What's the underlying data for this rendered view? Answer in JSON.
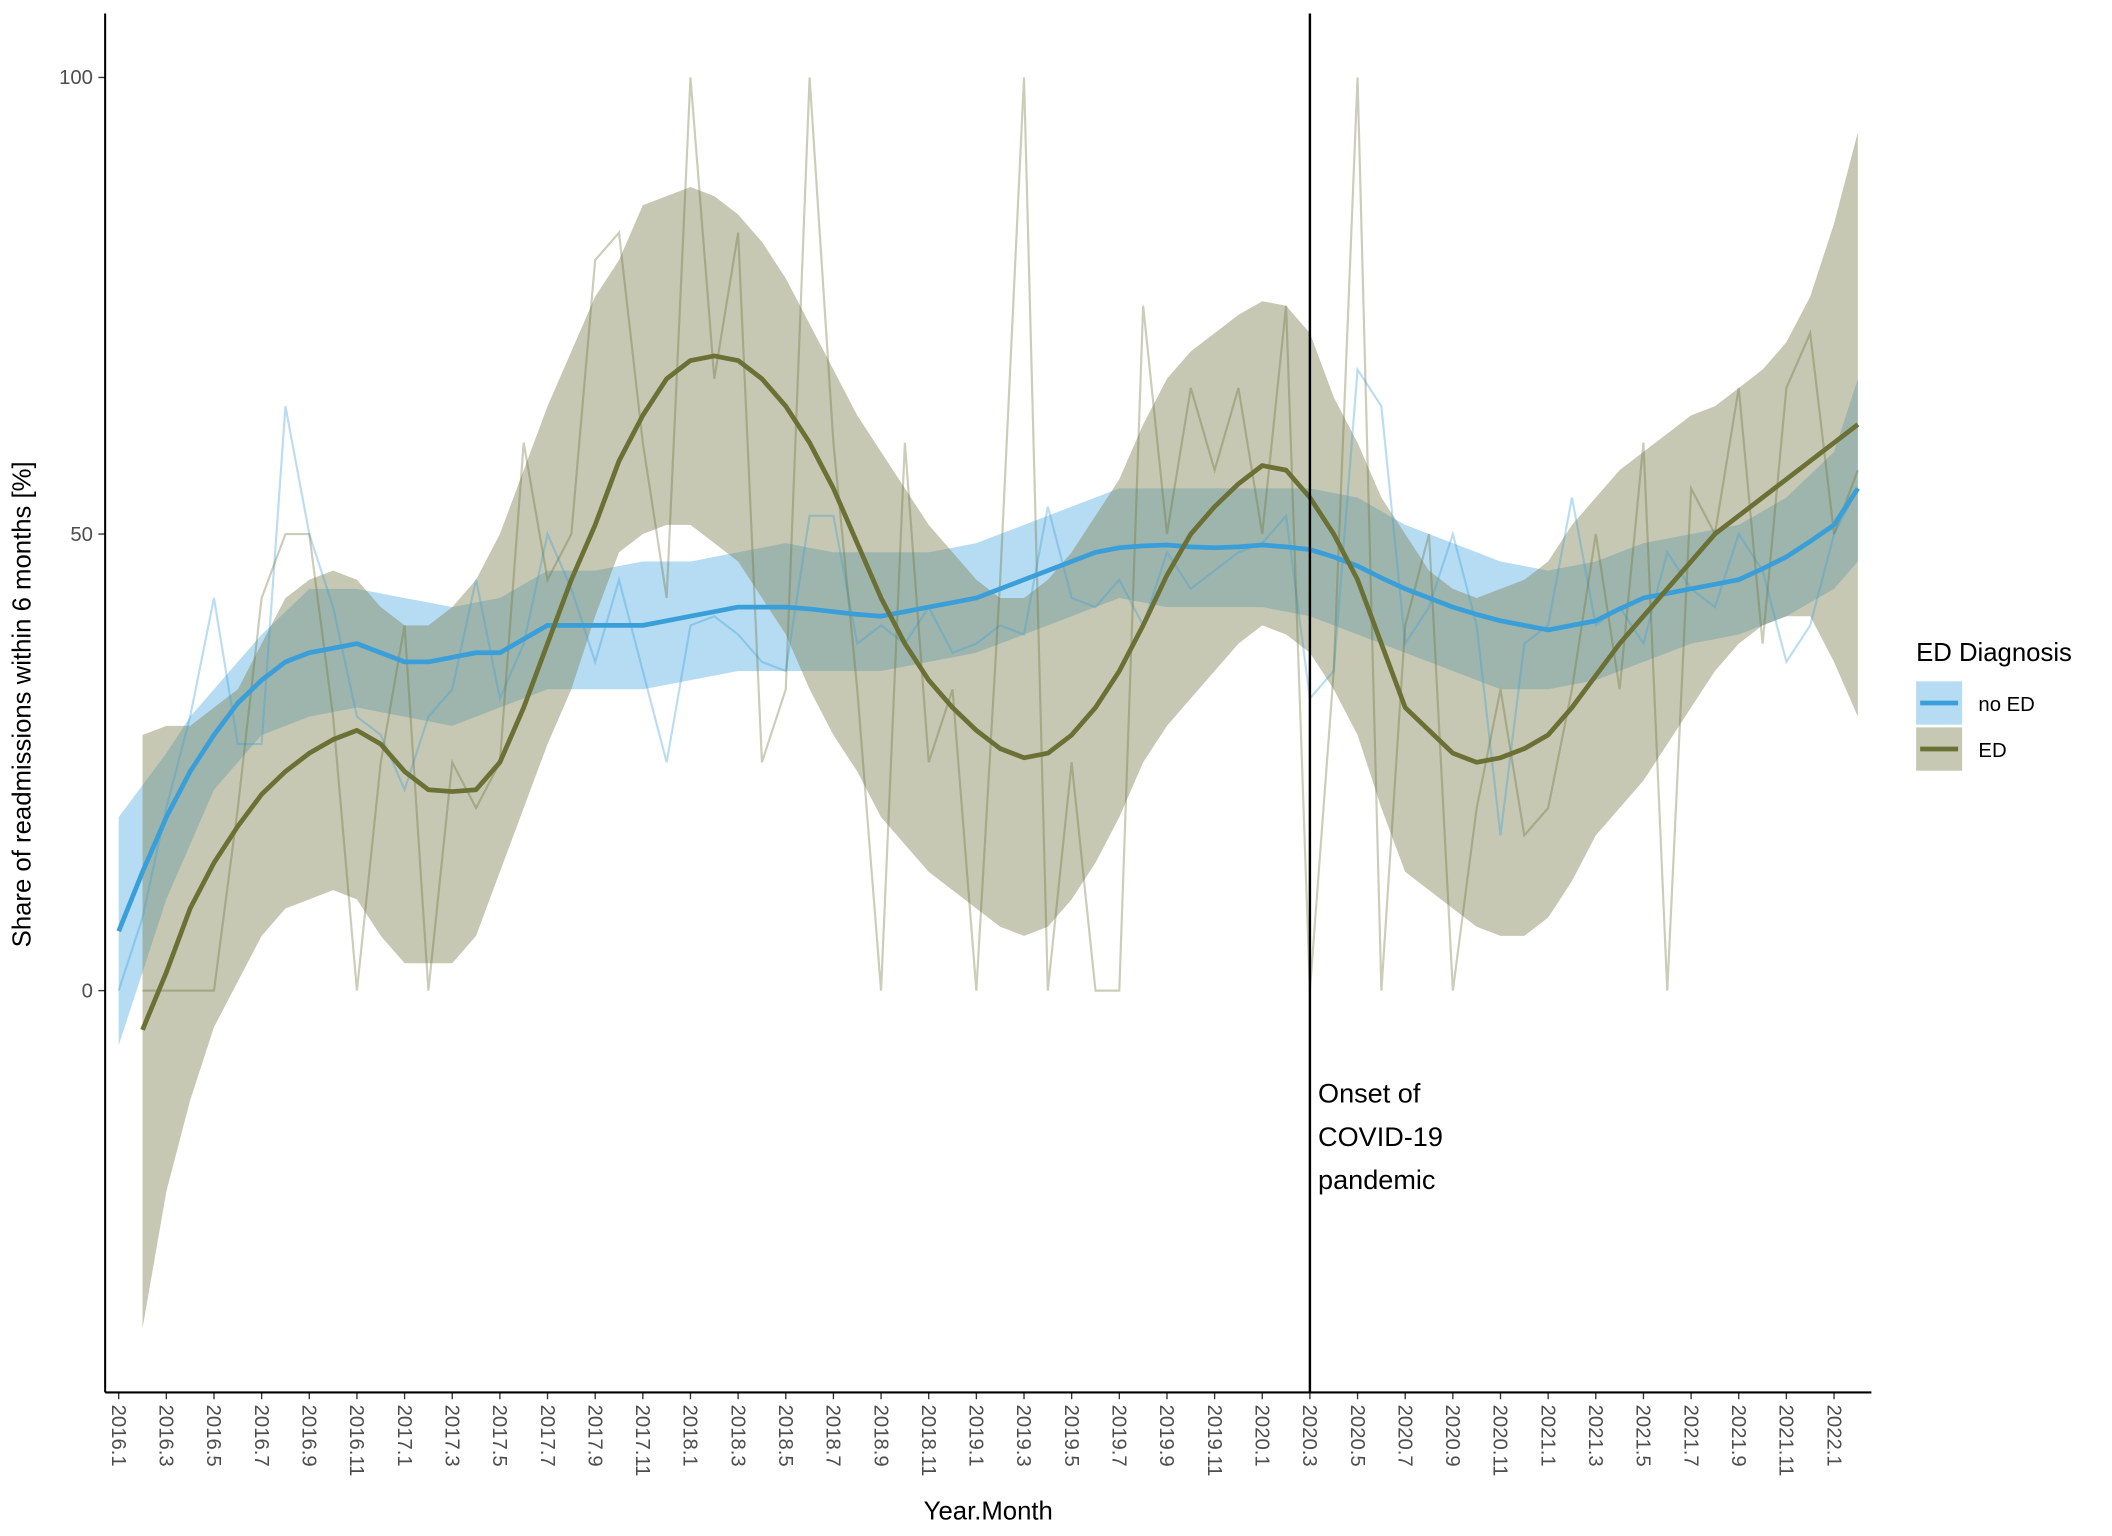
{
  "chart_data": {
    "type": "line",
    "x_label": "Year.Month",
    "y_label": "Share of readmissions within 6 months [%]",
    "categories": [
      "2016.1",
      null,
      "2016.3",
      null,
      "2016.5",
      null,
      "2016.7",
      null,
      "2016.9",
      null,
      "2016.11",
      null,
      "2017.1",
      null,
      "2017.3",
      null,
      "2017.5",
      null,
      "2017.7",
      null,
      "2017.9",
      null,
      "2017.11",
      null,
      "2018.1",
      null,
      "2018.3",
      null,
      "2018.5",
      null,
      "2018.7",
      null,
      "2018.9",
      null,
      "2018.11",
      null,
      "2019.1",
      null,
      "2019.3",
      null,
      "2019.5",
      null,
      "2019.7",
      null,
      "2019.9",
      null,
      "2019.11",
      null,
      "2020.1",
      null,
      "2020.3",
      null,
      "2020.5",
      null,
      "2020.7",
      null,
      "2020.9",
      null,
      "2020.11",
      null,
      "2021.1",
      null,
      "2021.3",
      null,
      "2021.5",
      null,
      "2021.7",
      null,
      "2021.9",
      null,
      "2021.11",
      null,
      "2022.1",
      null
    ],
    "ylim": [
      -44,
      107
    ],
    "yticks": [
      0,
      50,
      100
    ],
    "legend_title": "ED Diagnosis",
    "vline": "2020.3",
    "annotation": [
      "Onset of",
      "COVID-19",
      "pandemic"
    ],
    "series": [
      {
        "name": "no ED",
        "color": "#3a9fd8",
        "band_color": "rgba(110,185,232,0.5)",
        "values": [
          6.5,
          13,
          19,
          24,
          28,
          31.5,
          34,
          36,
          37,
          37.5,
          38,
          37,
          36,
          36,
          36.5,
          37,
          37,
          38.5,
          40,
          40,
          40,
          40,
          40,
          40.5,
          41,
          41.5,
          42,
          42,
          42,
          41.8,
          41.5,
          41.2,
          41,
          41.5,
          42,
          42.5,
          43,
          44,
          45,
          46,
          47,
          48,
          48.5,
          48.7,
          48.8,
          48.6,
          48.5,
          48.6,
          48.8,
          48.6,
          48.3,
          47.5,
          46.5,
          45.2,
          44,
          43,
          42,
          41.2,
          40.5,
          40,
          39.5,
          40,
          40.5,
          41.8,
          43,
          43.5,
          44,
          44.5,
          45,
          46.2,
          47.5,
          49.2,
          51,
          55
        ],
        "lower": [
          -6,
          2,
          10,
          16,
          22,
          25,
          28,
          29,
          30,
          30.5,
          31,
          30.5,
          30,
          29.5,
          29,
          30,
          31,
          32,
          33,
          33,
          33,
          33,
          33,
          33.5,
          34,
          34.5,
          35,
          35,
          35,
          35,
          35,
          35,
          35,
          35.5,
          36,
          36.5,
          37,
          38,
          39,
          40,
          41,
          42,
          43,
          42.5,
          42,
          42,
          42,
          42,
          42,
          41.5,
          41,
          40,
          39,
          38,
          37,
          36,
          35,
          34,
          33,
          33,
          33,
          33.5,
          34,
          35,
          36,
          37,
          38,
          38.5,
          39,
          40,
          41,
          42.5,
          44,
          47
        ],
        "upper": [
          19,
          22.5,
          26,
          30,
          33,
          36,
          39,
          41.5,
          44,
          44,
          44,
          43.5,
          43,
          42.5,
          42,
          42.5,
          43,
          44.5,
          46,
          46,
          46,
          46.5,
          47,
          47,
          47,
          47.5,
          48,
          48.5,
          49,
          48.5,
          48,
          48,
          48,
          48,
          48,
          48.5,
          49,
          50,
          51,
          52,
          53,
          54,
          55,
          55,
          55,
          55,
          55,
          55,
          55,
          55,
          55,
          54.5,
          54,
          52.5,
          51,
          50,
          49,
          48,
          47,
          46.5,
          46,
          46.5,
          47,
          48,
          49,
          49.5,
          50,
          50.5,
          51,
          52.5,
          54,
          56.5,
          59,
          67
        ],
        "raw": [
          0,
          8,
          20,
          30,
          43,
          27,
          27,
          64,
          50,
          42,
          30,
          28,
          22,
          30,
          33,
          45,
          32,
          38,
          50,
          44,
          36,
          45,
          35,
          25,
          40,
          41,
          39,
          36,
          35,
          52,
          52,
          38,
          40,
          38,
          42,
          37,
          38,
          40,
          39,
          53,
          43,
          42,
          45,
          40,
          48,
          44,
          46,
          48,
          49,
          52,
          32,
          35,
          68,
          64,
          38,
          42,
          50,
          40,
          17,
          38,
          40,
          54,
          40,
          42,
          38,
          48,
          44,
          42,
          50,
          46,
          36,
          40,
          50,
          55
        ]
      },
      {
        "name": "ED",
        "color": "#6b7035",
        "band_color": "rgba(128,134,88,0.45)",
        "values": [
          null,
          -4.3,
          2,
          9,
          14,
          18,
          21.5,
          24,
          26,
          27.5,
          28.5,
          27,
          24,
          22,
          21.8,
          22,
          25,
          31,
          38,
          45,
          51,
          58,
          63,
          67,
          69,
          69.5,
          69,
          67,
          64,
          60,
          55,
          49,
          43,
          38,
          34,
          31,
          28.5,
          26.5,
          25.5,
          26,
          28,
          31,
          35,
          40,
          45.5,
          50,
          53,
          55.5,
          57.5,
          57,
          54,
          50,
          45,
          38,
          31,
          28.5,
          26,
          25,
          25.5,
          26.5,
          28,
          31,
          34.5,
          38,
          41,
          44,
          47,
          50,
          52,
          54,
          56,
          58,
          60,
          62
        ],
        "lower": [
          null,
          -37,
          -22,
          -12,
          -4,
          1,
          6,
          9,
          10,
          11,
          10,
          6,
          3,
          3,
          3,
          6,
          13,
          20,
          27,
          33,
          41,
          48,
          50,
          51,
          51,
          49,
          47,
          43,
          39,
          33,
          28,
          24,
          19,
          16,
          13,
          11,
          9,
          7,
          6,
          7,
          10,
          14,
          19,
          25,
          29,
          32,
          35,
          38,
          40,
          39,
          37,
          33,
          28,
          20,
          13,
          11,
          9,
          7,
          6,
          6,
          8,
          12,
          17,
          20,
          23,
          27,
          31,
          35,
          38,
          40,
          41,
          41,
          36,
          30
        ],
        "upper": [
          null,
          28,
          29,
          29,
          31,
          33,
          38,
          43,
          45,
          46,
          45,
          42,
          40,
          40,
          42,
          45,
          50,
          57,
          64,
          70,
          76,
          80,
          86,
          87,
          88,
          87,
          85,
          82,
          78,
          73,
          68,
          63,
          59,
          55,
          51,
          48,
          45,
          43,
          43,
          45,
          48,
          52,
          56,
          62,
          67,
          70,
          72,
          74,
          75.5,
          75,
          72,
          65,
          60,
          54,
          50,
          46,
          44,
          43,
          44,
          45,
          47,
          51,
          54,
          57,
          59,
          61,
          63,
          64,
          66,
          68,
          71,
          76,
          84,
          94
        ],
        "raw": [
          null,
          0,
          0,
          0,
          0,
          20,
          43,
          50,
          50,
          30,
          0,
          25,
          40,
          0,
          25,
          20,
          25,
          60,
          45,
          50,
          80,
          83,
          60,
          43,
          100,
          67,
          83,
          25,
          33,
          100,
          60,
          33,
          0,
          60,
          25,
          33,
          0,
          45,
          100,
          0,
          25,
          0,
          0,
          75,
          50,
          66,
          57,
          66,
          50,
          75,
          0,
          35,
          100,
          0,
          40,
          50,
          0,
          20,
          33,
          17,
          20,
          33,
          50,
          33,
          60,
          0,
          55,
          50,
          66,
          38,
          66,
          72,
          50,
          57
        ]
      }
    ]
  }
}
